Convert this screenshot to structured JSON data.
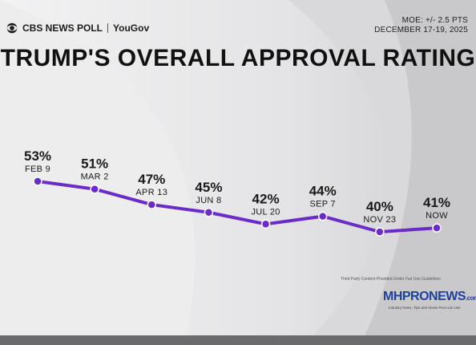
{
  "header": {
    "brand": "CBS NEWS POLL",
    "partner": "YouGov",
    "moe": "MOE: +/- 2.5 PTS",
    "dates": "DECEMBER 17-19, 2025"
  },
  "chart_data": {
    "type": "line",
    "title": "TRUMP'S OVERALL APPROVAL RATING",
    "categories": [
      "FEB 9",
      "MAR 2",
      "APR 13",
      "JUN 8",
      "JUL 20",
      "SEP 7",
      "NOV 23",
      "NOW"
    ],
    "series": [
      {
        "values": [
          53,
          51,
          47,
          45,
          42,
          44,
          40,
          41
        ],
        "labels": [
          "53%",
          "51%",
          "47%",
          "45%",
          "42%",
          "44%",
          "40%",
          "41%"
        ]
      }
    ],
    "line_color": "#6a2bc9",
    "grid": false,
    "legend": "none"
  },
  "footer": {
    "disclaimer": "Third Party Content Provided Under Fair Use Guidelines.",
    "logo_main": "MHPRONEWS",
    "logo_suffix": ".com",
    "tagline": "Industry News, Tips and Views Pros can Use"
  }
}
